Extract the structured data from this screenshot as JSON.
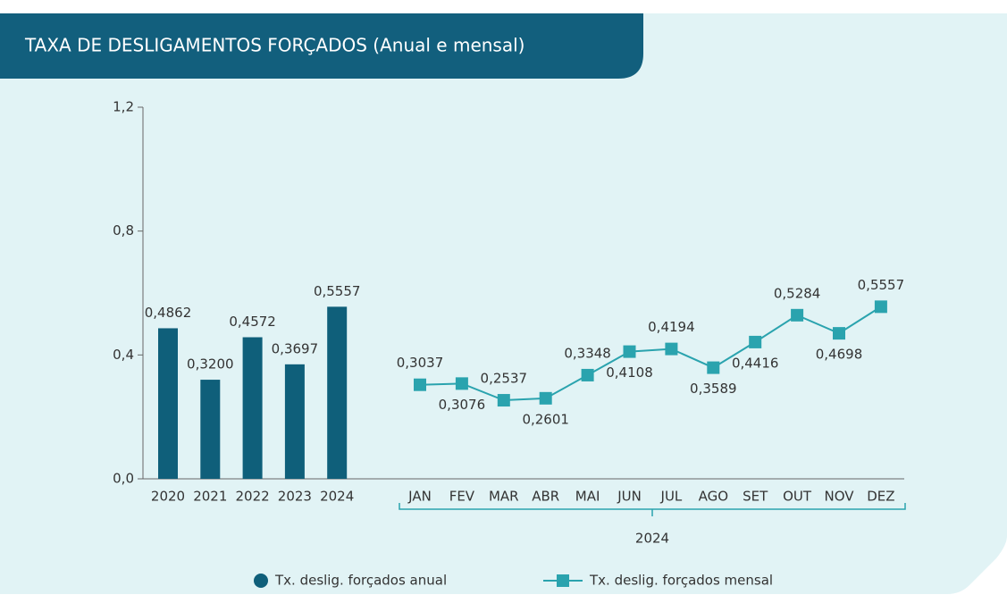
{
  "chart_data": {
    "type": "bar",
    "title": "TAXA DE DESLIGAMENTOS FORÇADOS (Anual e mensal)",
    "ylim": [
      0,
      1.2
    ],
    "yticks": [
      {
        "value": 0,
        "label": "0,0"
      },
      {
        "value": 0.4,
        "label": "0,4"
      },
      {
        "value": 0.8,
        "label": "0,8"
      },
      {
        "value": 1.2,
        "label": "1,2"
      }
    ],
    "group_label": "2024",
    "series": [
      {
        "name": "Tx. deslig. forçados anual",
        "type": "bar",
        "color": "#0f5f7a",
        "categories": [
          "2020",
          "2021",
          "2022",
          "2023",
          "2024"
        ],
        "values": [
          0.4862,
          0.32,
          0.4572,
          0.3697,
          0.5557
        ],
        "value_labels": [
          "0,4862",
          "0,3200",
          "0,4572",
          "0,3697",
          "0,5557"
        ]
      },
      {
        "name": "Tx. deslig. forçados mensal",
        "type": "line",
        "color": "#2aa3ae",
        "categories": [
          "JAN",
          "FEV",
          "MAR",
          "ABR",
          "MAI",
          "JUN",
          "JUL",
          "AGO",
          "SET",
          "OUT",
          "NOV",
          "DEZ"
        ],
        "values": [
          0.3037,
          0.3076,
          0.2537,
          0.2601,
          0.3348,
          0.4108,
          0.4194,
          0.3589,
          0.4416,
          0.5284,
          0.4698,
          0.5557
        ],
        "value_labels": [
          "0,3037",
          "0,3076",
          "0,2537",
          "0,2601",
          "0,3348",
          "0,4108",
          "0,4194",
          "0,3589",
          "0,4416",
          "0,5284",
          "0,4698",
          "0,5557"
        ]
      }
    ]
  }
}
